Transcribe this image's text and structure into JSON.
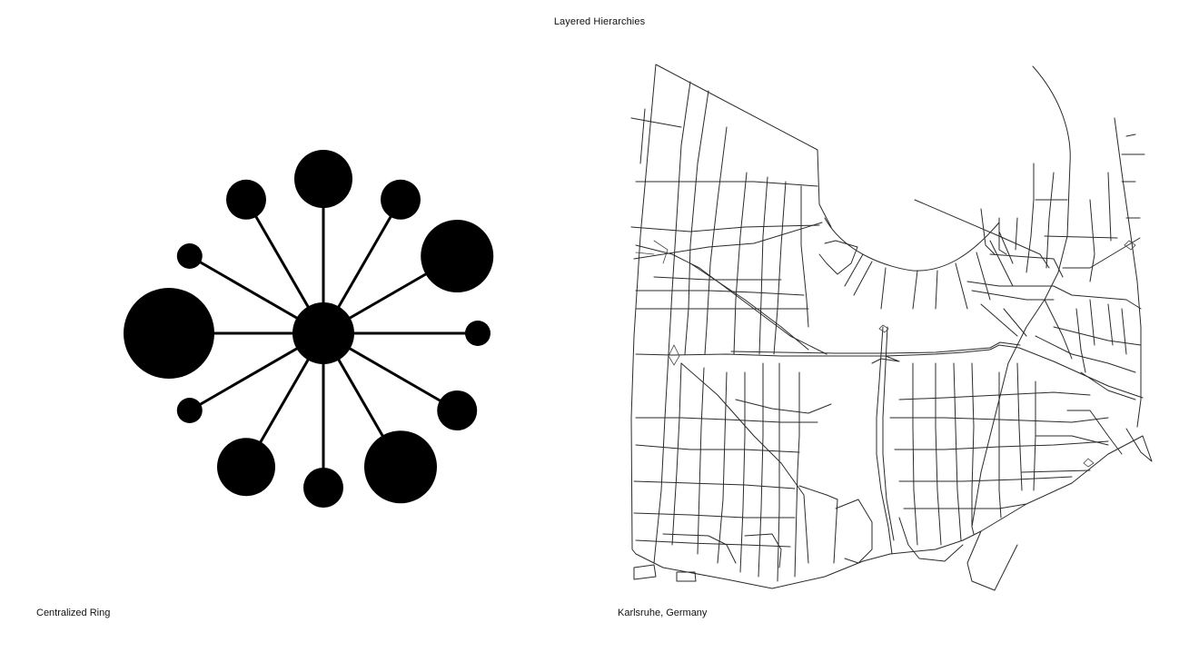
{
  "title": "Layered Hierarchies",
  "left_panel": {
    "caption": "Centralized Ring",
    "hub": {
      "label": "hub"
    },
    "nodes": [
      {
        "id": "n1",
        "angle_deg": 90,
        "size": 3
      },
      {
        "id": "n2",
        "angle_deg": 60,
        "size": 2
      },
      {
        "id": "n3",
        "angle_deg": 30,
        "size": 4
      },
      {
        "id": "n4",
        "angle_deg": 0,
        "size": 1
      },
      {
        "id": "n5",
        "angle_deg": -30,
        "size": 2
      },
      {
        "id": "n6",
        "angle_deg": -60,
        "size": 4
      },
      {
        "id": "n7",
        "angle_deg": -90,
        "size": 2
      },
      {
        "id": "n8",
        "angle_deg": -120,
        "size": 3
      },
      {
        "id": "n9",
        "angle_deg": -150,
        "size": 1
      },
      {
        "id": "n10",
        "angle_deg": 180,
        "size": 5
      },
      {
        "id": "n11",
        "angle_deg": 150,
        "size": 1
      },
      {
        "id": "n12",
        "angle_deg": 120,
        "size": 2
      }
    ],
    "colors": {
      "ink": "#000000"
    }
  },
  "right_panel": {
    "caption": "Karlsruhe, Germany",
    "colors": {
      "street": "#2a2a2a"
    }
  }
}
